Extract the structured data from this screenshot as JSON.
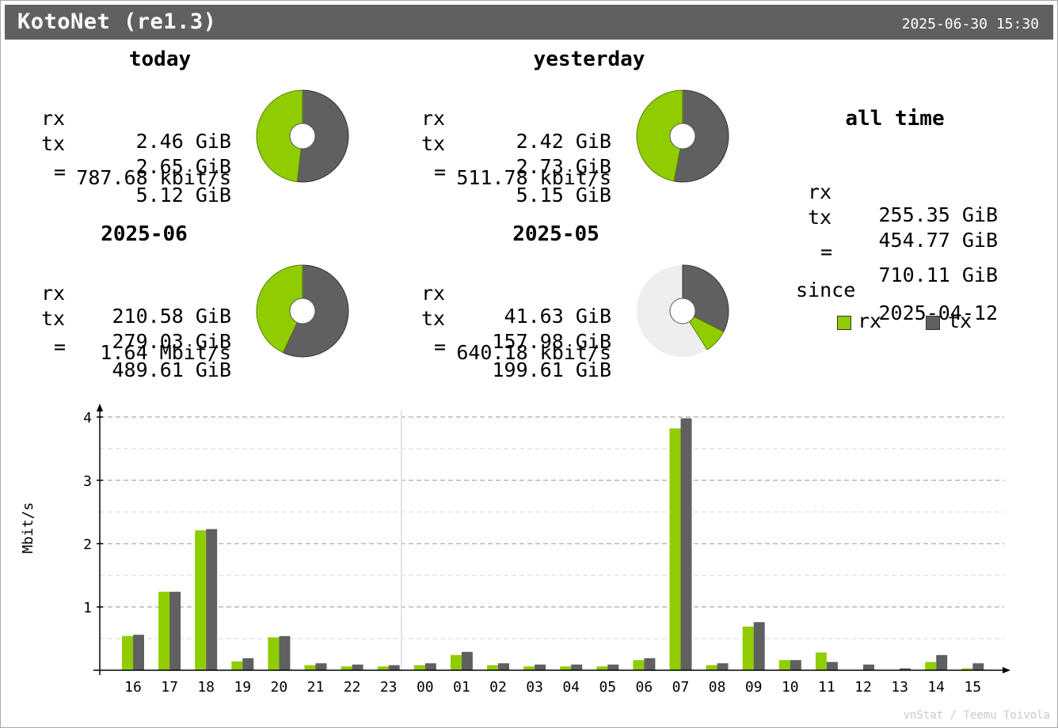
{
  "header": {
    "title": "KotoNet (re1.3)",
    "timestamp": "2025-06-30 15:30"
  },
  "colors": {
    "rx": "#8fcc00",
    "tx": "#606060",
    "empty": "#eeeeee",
    "grid": "#bbbbbb"
  },
  "today": {
    "title": "today",
    "rx_label": "rx",
    "rx": "2.46 GiB",
    "tx_label": "tx",
    "tx": "2.65 GiB",
    "eq_label": "=",
    "total": "5.12 GiB",
    "rate": "787.68 kbit/s",
    "pie": {
      "rx": 2.46,
      "tx": 2.65,
      "fraction_filled": 1.0
    }
  },
  "yesterday": {
    "title": "yesterday",
    "rx_label": "rx",
    "rx": "2.42 GiB",
    "tx_label": "tx",
    "tx": "2.73 GiB",
    "eq_label": "=",
    "total": "5.15 GiB",
    "rate": "511.78 kbit/s",
    "pie": {
      "rx": 2.42,
      "tx": 2.73,
      "fraction_filled": 1.0
    }
  },
  "month_current": {
    "title": "2025-06",
    "rx_label": "rx",
    "rx": "210.58 GiB",
    "tx_label": "tx",
    "tx": "279.03 GiB",
    "eq_label": "=",
    "total": "489.61 GiB",
    "rate": "1.64 Mbit/s",
    "pie": {
      "rx": 210.58,
      "tx": 279.03,
      "fraction_filled": 1.0
    }
  },
  "month_previous": {
    "title": "2025-05",
    "rx_label": "rx",
    "rx": "41.63 GiB",
    "tx_label": "tx",
    "tx": "157.98 GiB",
    "eq_label": "=",
    "total": "199.61 GiB",
    "rate": "640.18 kbit/s",
    "pie": {
      "rx": 41.63,
      "tx": 157.98,
      "fraction_filled": 0.41
    }
  },
  "alltime": {
    "title": "all time",
    "rx_label": "rx",
    "rx": "255.35 GiB",
    "tx_label": "tx",
    "tx": "454.77 GiB",
    "eq_label": "=",
    "total": "710.11 GiB",
    "since_label": "since",
    "since": "2025-04-12"
  },
  "legend": {
    "rx": "rx",
    "tx": "tx"
  },
  "credit": "vnStat / Teemu Toivola",
  "chart_data": {
    "type": "bar",
    "ylabel": "Mbit/s",
    "ylim": [
      0,
      4
    ],
    "yticks": [
      1,
      2,
      3,
      4
    ],
    "grid": true,
    "categories": [
      "16",
      "17",
      "18",
      "19",
      "20",
      "21",
      "22",
      "23",
      "00",
      "01",
      "02",
      "03",
      "04",
      "05",
      "06",
      "07",
      "08",
      "09",
      "10",
      "11",
      "12",
      "13",
      "14",
      "15"
    ],
    "day_divider_after": "23",
    "series": [
      {
        "name": "rx",
        "values": [
          0.54,
          1.24,
          2.21,
          0.14,
          0.52,
          0.08,
          0.06,
          0.06,
          0.08,
          0.24,
          0.08,
          0.06,
          0.06,
          0.06,
          0.16,
          3.82,
          0.08,
          0.69,
          0.16,
          0.28,
          0.0,
          0.0,
          0.13,
          0.03
        ]
      },
      {
        "name": "tx",
        "values": [
          0.56,
          1.24,
          2.23,
          0.19,
          0.54,
          0.11,
          0.09,
          0.08,
          0.11,
          0.29,
          0.11,
          0.09,
          0.09,
          0.09,
          0.19,
          3.98,
          0.11,
          0.76,
          0.16,
          0.13,
          0.09,
          0.03,
          0.24,
          0.11
        ]
      }
    ]
  }
}
